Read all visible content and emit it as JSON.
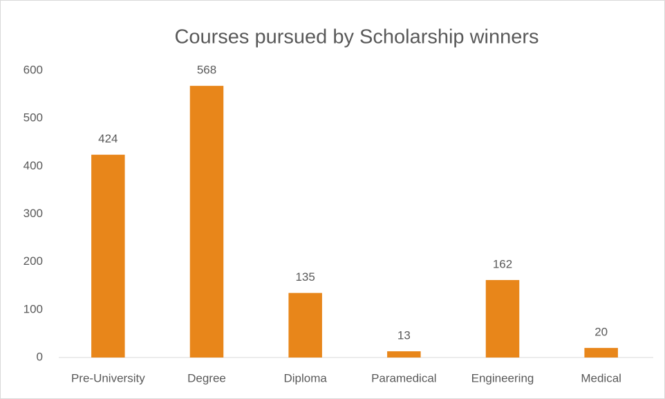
{
  "chart_data": {
    "type": "bar",
    "title": "Courses pursued by Scholarship winners",
    "categories": [
      "Pre-University",
      "Degree",
      "Diploma",
      "Paramedical",
      "Engineering",
      "Medical"
    ],
    "values": [
      424,
      568,
      135,
      13,
      162,
      20
    ],
    "color": "#e8861a",
    "ylim": [
      0,
      600
    ],
    "yticks": [
      0,
      100,
      200,
      300,
      400,
      500,
      600
    ],
    "grid": false
  }
}
